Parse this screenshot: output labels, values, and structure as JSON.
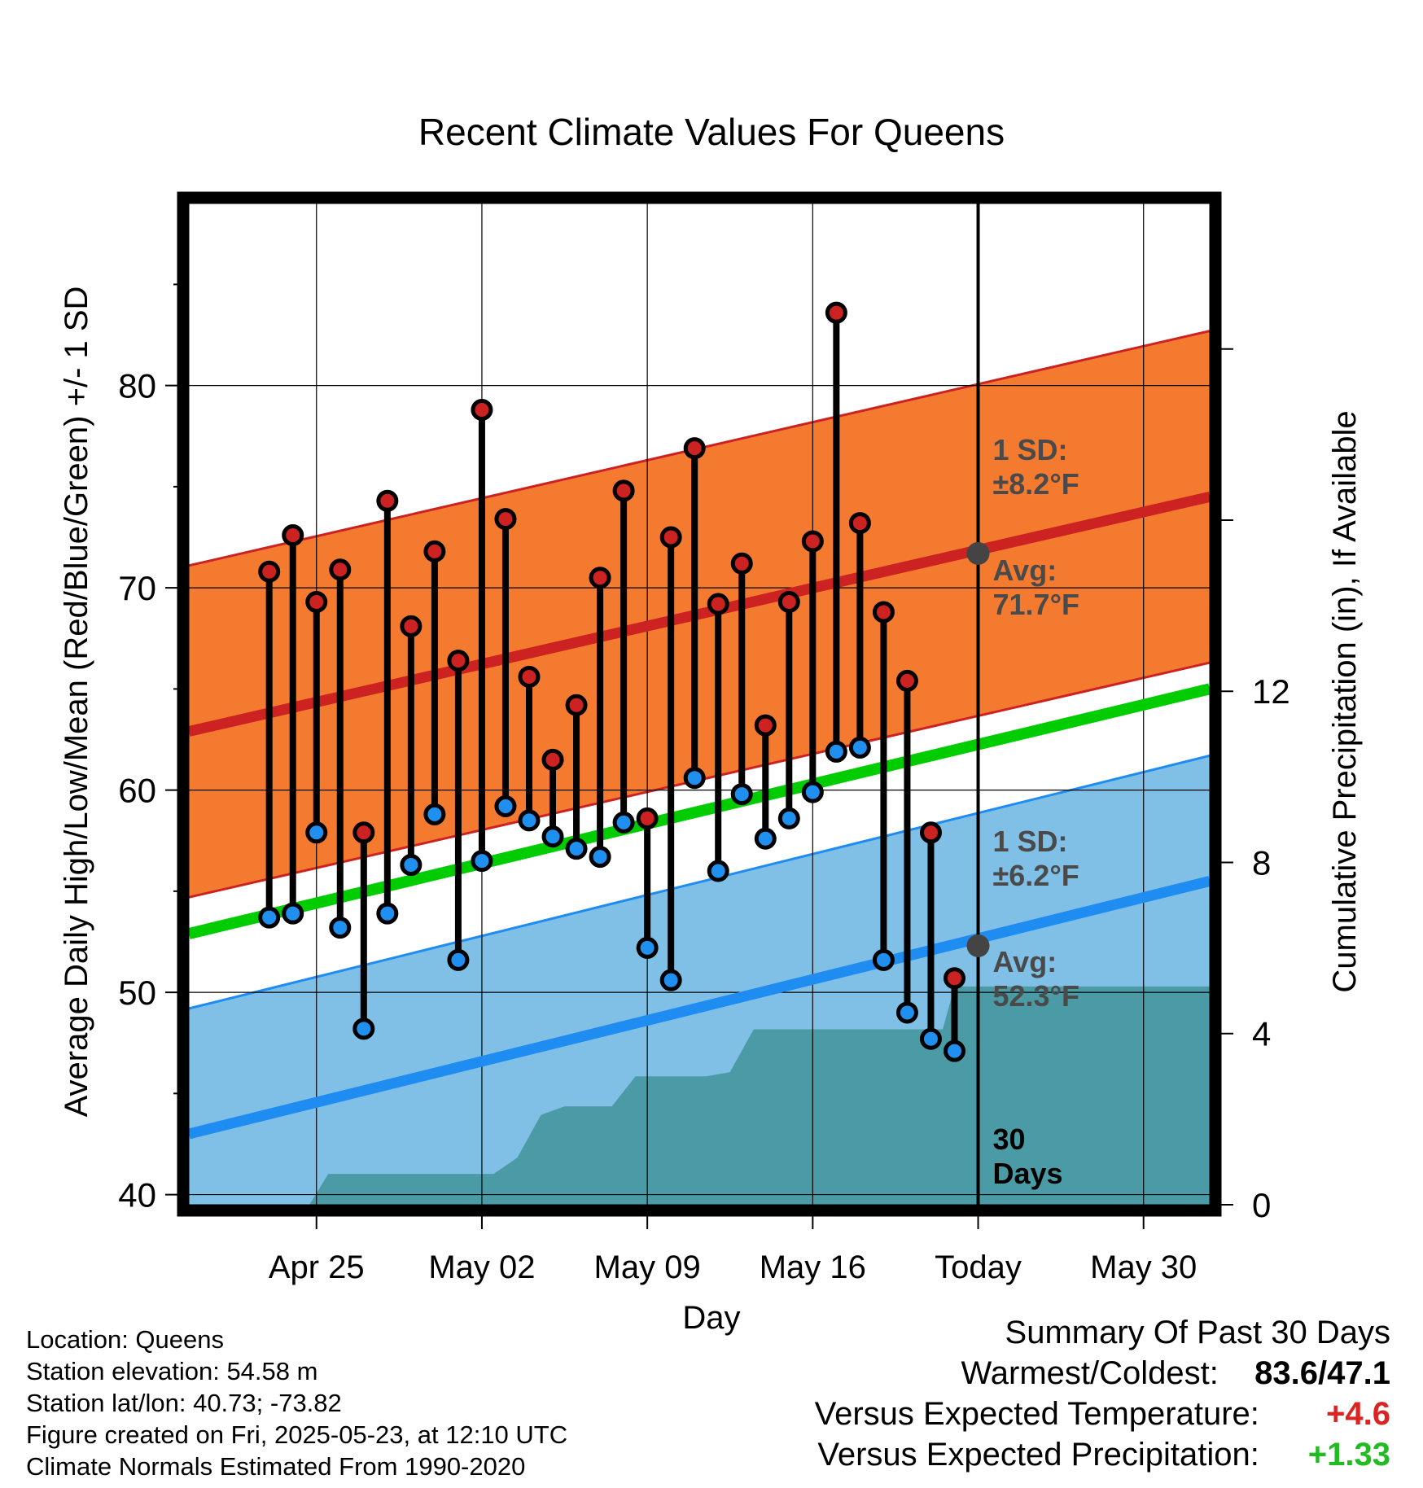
{
  "chart_data": {
    "type": "line",
    "title": "Recent Climate Values For Queens",
    "xlabel": "Day",
    "ylabel": "Average Daily High/Low/Mean (Red/Blue/Green) +/- 1 SD",
    "y2label": "Cumulative Precipitation (in), If Available",
    "ylim": [
      39.5,
      89
    ],
    "y2lim": [
      0,
      23.4
    ],
    "yticks": [
      40,
      50,
      60,
      70,
      80
    ],
    "y2ticks": [
      0,
      4,
      8,
      12
    ],
    "x_range_days": [
      -33.4,
      9.8
    ],
    "xticks": [
      {
        "offset": -28,
        "label": "Apr 25"
      },
      {
        "offset": -21,
        "label": "May 02"
      },
      {
        "offset": -14,
        "label": "May 09"
      },
      {
        "offset": -7,
        "label": "May 16"
      },
      {
        "offset": 0,
        "label": "Today"
      },
      {
        "offset": 7,
        "label": "May 30"
      }
    ],
    "normal_high": {
      "start": 62.9,
      "end": 74.5,
      "sd": 8.2,
      "color": "#cc2222",
      "band_color": "#f47a30"
    },
    "normal_low": {
      "start": 43.0,
      "end": 55.5,
      "sd": 6.2,
      "color": "#1e8cf0",
      "band_color": "#80c0e6"
    },
    "normal_mean": {
      "start": 52.9,
      "end": 65.0,
      "color": "#00cc00"
    },
    "daily": {
      "offsets": [
        -30,
        -29,
        -28,
        -27,
        -26,
        -25,
        -24,
        -23,
        -22,
        -21,
        -20,
        -19,
        -18,
        -17,
        -16,
        -15,
        -14,
        -13,
        -12,
        -11,
        -10,
        -9,
        -8,
        -7,
        -6,
        -5,
        -4,
        -3,
        -2,
        -1
      ],
      "highs": [
        70.8,
        72.6,
        69.3,
        70.9,
        57.9,
        74.3,
        68.1,
        71.8,
        66.4,
        78.8,
        73.4,
        65.6,
        61.5,
        64.2,
        70.5,
        74.8,
        58.6,
        72.5,
        76.9,
        69.2,
        71.2,
        63.2,
        69.3,
        72.3,
        83.6,
        73.2,
        68.8,
        65.4,
        57.9,
        50.7
      ],
      "lows": [
        53.7,
        53.9,
        57.9,
        53.2,
        48.2,
        53.9,
        56.3,
        58.8,
        51.6,
        56.5,
        59.2,
        58.5,
        57.7,
        57.1,
        56.7,
        58.4,
        52.2,
        50.6,
        60.6,
        56.0,
        59.8,
        57.6,
        58.6,
        59.9,
        61.9,
        62.1,
        51.6,
        49.0,
        47.7,
        47.1
      ],
      "high_color": "#cc2222",
      "low_color": "#2090f0"
    },
    "precip_cumulative": {
      "offsets": [
        -33.4,
        -28.3,
        -27.5,
        -21.5,
        -20.5,
        -19.5,
        -18.5,
        -17.5,
        -15.5,
        -14.5,
        -13.5,
        -11.5,
        -10.5,
        -9.5,
        -8.5,
        -1.5,
        -1.0,
        9.8
      ],
      "values": [
        0,
        0,
        0.72,
        0.72,
        0.72,
        1.1,
        2.1,
        2.3,
        2.3,
        3.0,
        3.0,
        3.0,
        3.1,
        4.1,
        4.1,
        4.1,
        5.1,
        5.1
      ],
      "color": "#4a9ba6"
    },
    "annotations": {
      "high_sd": [
        "1 SD:",
        "±8.2°F"
      ],
      "high_avg": [
        "Avg:",
        "71.7°F"
      ],
      "low_sd": [
        "1 SD:",
        "±6.2°F"
      ],
      "low_avg": [
        "Avg:",
        "52.3°F"
      ],
      "today_high_avg": 71.7,
      "today_low_avg": 52.3,
      "days": [
        "30",
        "Days"
      ]
    }
  },
  "footer": {
    "location": "Location: Queens",
    "elevation": "Station elevation: 54.58 m",
    "latlon": "Station lat/lon: 40.73; -73.82",
    "created": "Figure created on Fri, 2025-05-23, at 12:10 UTC",
    "normals": "Climate Normals Estimated From 1990-2020"
  },
  "summary": {
    "heading": "Summary Of Past 30 Days",
    "warm_cold_label": "Warmest/Coldest:",
    "warm_cold_value": "83.6/47.1",
    "temp_label": "Versus Expected Temperature:",
    "temp_value": "+4.6",
    "temp_color": "#dd2222",
    "precip_label": "Versus Expected Precipitation:",
    "precip_value": "+1.33",
    "precip_color": "#22bb22"
  }
}
